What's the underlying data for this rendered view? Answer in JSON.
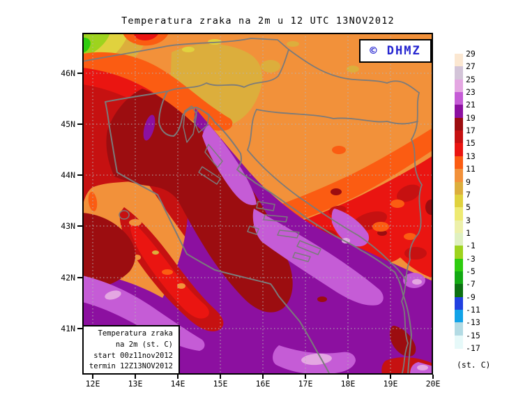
{
  "title": "Temperatura zraka na 2m u 12 UTC 13NOV2012",
  "logo": {
    "text": "© DHMZ",
    "color": "#2424d0"
  },
  "axes": {
    "x": [
      "12E",
      "13E",
      "14E",
      "15E",
      "16E",
      "17E",
      "18E",
      "19E",
      "20E"
    ],
    "y": [
      "46N",
      "45N",
      "44N",
      "43N",
      "42N",
      "41N"
    ]
  },
  "legend": {
    "unit": "(st. C)",
    "labels": [
      "29",
      "27",
      "25",
      "23",
      "21",
      "19",
      "17",
      "15",
      "13",
      "11",
      "9",
      "7",
      "5",
      "3",
      "1",
      "-1",
      "-3",
      "-5",
      "-7",
      "-9",
      "-11",
      "-13",
      "-15",
      "-17"
    ],
    "colors": [
      "#fbe7d1",
      "#d3c4d8",
      "#e4a7e2",
      "#c55cd6",
      "#8c10a0",
      "#9c0d10",
      "#c61111",
      "#ea1511",
      "#fb5c12",
      "#f2913a",
      "#dcae3c",
      "#e0d23e",
      "#eeea72",
      "#edf0aa",
      "#dff0c0",
      "#9ed31e",
      "#2ecc0f",
      "#13a913",
      "#0c7012",
      "#2141e0",
      "#12a3e8",
      "#b3dbe4",
      "#e6f9f9"
    ]
  },
  "info_box": {
    "lines": [
      "Temperatura zraka",
      "na 2m (st. C)",
      "start 00z11nov2012",
      "termin 12Z13NOV2012"
    ]
  },
  "colors": {
    "map_border": "#000000",
    "country_border_gray": "#7b7b7b",
    "grid_dots": "#b5b5b5",
    "logo_blue": "#2424d0"
  }
}
